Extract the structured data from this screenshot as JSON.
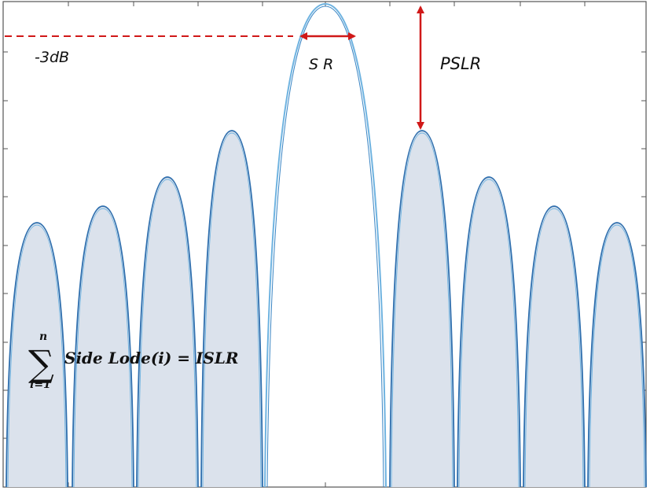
{
  "labels": {
    "minus3db": "-3dB",
    "resolution": "S R",
    "pslr": "PSLR",
    "sum_upper": "n",
    "sum_lower": "i=1",
    "equation": "Side Lode(i) = ISLR"
  },
  "colors": {
    "curve": "#2f6fae",
    "curve_light": "#6fb3e0",
    "fill": "#dbe2ec",
    "arrow": "#d01818",
    "frame": "#555555"
  }
}
